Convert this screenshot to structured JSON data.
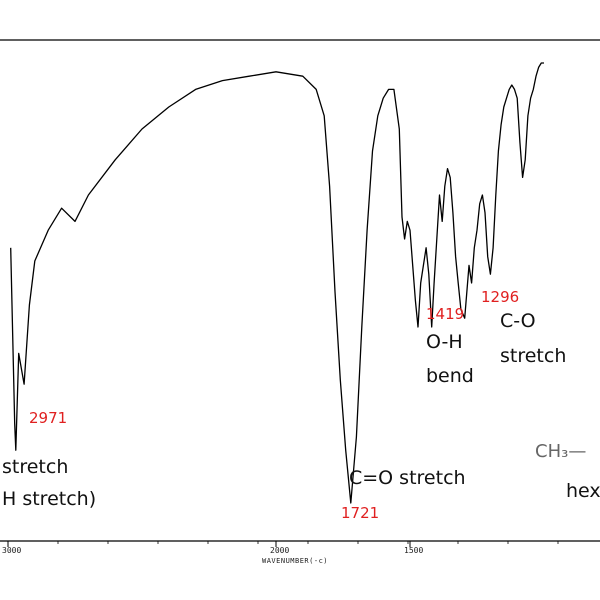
{
  "chart_data": {
    "type": "line",
    "title": "",
    "xlabel": "WAVENUMBER(-c)",
    "ylabel": "",
    "x_reversed": true,
    "xlim": [
      3000,
      1000
    ],
    "x_ticks": [
      {
        "value": 3000,
        "label": "3000"
      },
      {
        "value": 2000,
        "label": "2000"
      },
      {
        "value": 1500,
        "label": "1500"
      }
    ],
    "series": [
      {
        "values": [
          [
            2990,
            42
          ],
          [
            2975,
            82
          ],
          [
            2971,
            88
          ],
          [
            2960,
            66
          ],
          [
            2940,
            73
          ],
          [
            2920,
            55
          ],
          [
            2900,
            45
          ],
          [
            2850,
            38
          ],
          [
            2800,
            33
          ],
          [
            2750,
            36
          ],
          [
            2700,
            30
          ],
          [
            2600,
            22
          ],
          [
            2500,
            15
          ],
          [
            2400,
            10
          ],
          [
            2300,
            6
          ],
          [
            2200,
            4
          ],
          [
            2100,
            3
          ],
          [
            2000,
            2
          ],
          [
            1900,
            3
          ],
          [
            1850,
            6
          ],
          [
            1820,
            12
          ],
          [
            1800,
            28
          ],
          [
            1780,
            52
          ],
          [
            1760,
            72
          ],
          [
            1740,
            88
          ],
          [
            1721,
            100
          ],
          [
            1700,
            85
          ],
          [
            1680,
            60
          ],
          [
            1660,
            38
          ],
          [
            1640,
            20
          ],
          [
            1620,
            12
          ],
          [
            1600,
            8
          ],
          [
            1580,
            6
          ],
          [
            1560,
            6
          ],
          [
            1540,
            15
          ],
          [
            1530,
            35
          ],
          [
            1520,
            40
          ],
          [
            1510,
            36
          ],
          [
            1500,
            38
          ],
          [
            1490,
            46
          ],
          [
            1480,
            54
          ],
          [
            1470,
            60
          ],
          [
            1460,
            50
          ],
          [
            1450,
            46
          ],
          [
            1440,
            42
          ],
          [
            1430,
            48
          ],
          [
            1419,
            60
          ],
          [
            1410,
            50
          ],
          [
            1400,
            40
          ],
          [
            1390,
            30
          ],
          [
            1380,
            36
          ],
          [
            1370,
            28
          ],
          [
            1360,
            24
          ],
          [
            1350,
            26
          ],
          [
            1340,
            34
          ],
          [
            1330,
            44
          ],
          [
            1320,
            50
          ],
          [
            1310,
            56
          ],
          [
            1296,
            58
          ],
          [
            1280,
            46
          ],
          [
            1270,
            50
          ],
          [
            1260,
            42
          ],
          [
            1250,
            38
          ],
          [
            1240,
            32
          ],
          [
            1230,
            30
          ],
          [
            1220,
            34
          ],
          [
            1210,
            44
          ],
          [
            1200,
            48
          ],
          [
            1190,
            42
          ],
          [
            1180,
            30
          ],
          [
            1170,
            20
          ],
          [
            1160,
            14
          ],
          [
            1150,
            10
          ],
          [
            1140,
            8
          ],
          [
            1130,
            6
          ],
          [
            1120,
            5
          ],
          [
            1110,
            6
          ],
          [
            1100,
            8
          ],
          [
            1090,
            18
          ],
          [
            1080,
            26
          ],
          [
            1070,
            22
          ],
          [
            1060,
            12
          ],
          [
            1050,
            8
          ],
          [
            1040,
            6
          ],
          [
            1030,
            3
          ],
          [
            1020,
            1
          ],
          [
            1010,
            0
          ],
          [
            1000,
            0
          ]
        ]
      }
    ],
    "annotations": [
      {
        "text": "2971",
        "x": 2971,
        "color": "#e02020"
      },
      {
        "text": "1721",
        "x": 1721,
        "color": "#e02020"
      },
      {
        "text": "1419",
        "x": 1419,
        "color": "#e02020"
      },
      {
        "text": "1296",
        "x": 1296,
        "color": "#e02020"
      }
    ]
  },
  "labels": {
    "stretch_left_1": "stretch",
    "stretch_left_2": "H stretch)",
    "co_stretch": "C=O stretch",
    "oh_bend_1": "O-H",
    "oh_bend_2": "bend",
    "c_o_1": "C-O",
    "c_o_2": "stretch",
    "formula": "CH₃—",
    "hex": "hex"
  },
  "colors": {
    "trace": "#000000",
    "peak_label": "#e02020",
    "formula": "#666666"
  }
}
